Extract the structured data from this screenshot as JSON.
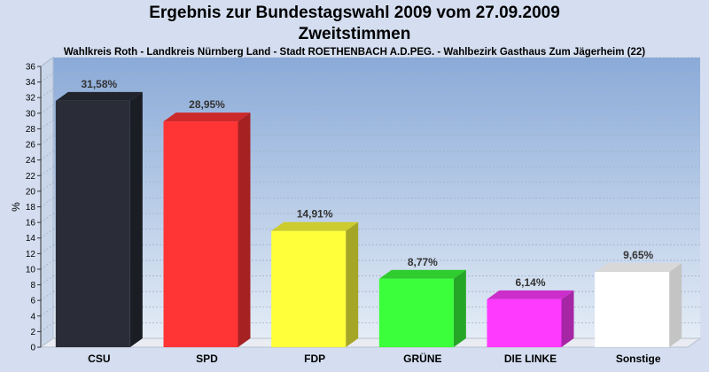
{
  "header": {
    "title_line1": "Ergebnis zur Bundestagswahl 2009 vom 27.09.2009",
    "title_line2": "Zweitstimmen",
    "subtitle": "Wahlkreis Roth - Landkreis Nürnberg Land - Stadt ROETHENBACH A.D.PEG. - Wahlbezirk Gasthaus Zum Jägerheim (22)"
  },
  "chart_data": {
    "type": "bar",
    "title": "Ergebnis zur Bundestagswahl 2009 vom 27.09.2009",
    "subtitle": "Zweitstimmen",
    "ylabel": "%",
    "xlabel": "",
    "ylim": [
      0,
      36
    ],
    "ytick_step": 2,
    "grid": true,
    "categories": [
      "CSU",
      "SPD",
      "FDP",
      "GRÜNE",
      "DIE LINKE",
      "Sonstige"
    ],
    "values": [
      31.58,
      28.95,
      14.91,
      8.77,
      6.14,
      9.65
    ],
    "value_labels": [
      "31,58%",
      "28,95%",
      "14,91%",
      "8,77%",
      "6,14%",
      "9,65%"
    ],
    "colors": [
      "#2a2d38",
      "#ff3535",
      "#ffff3a",
      "#3aff3a",
      "#ff3aff",
      "#ffffff"
    ]
  }
}
